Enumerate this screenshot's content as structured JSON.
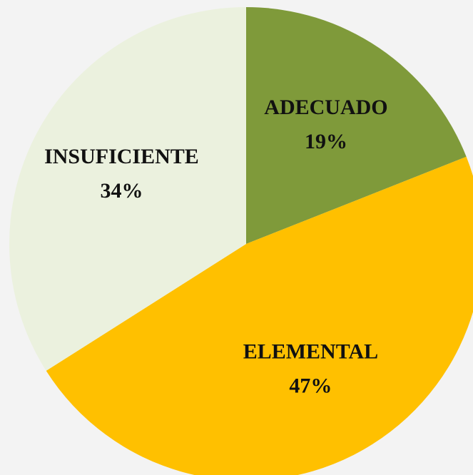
{
  "chart_data": {
    "type": "pie",
    "categories": [
      "ADECUADO",
      "ELEMENTAL",
      "INSUFICIENTE"
    ],
    "values": [
      19,
      47,
      34
    ],
    "value_labels": [
      "19%",
      "47%",
      "34%"
    ],
    "colors": [
      "#7f9a3a",
      "#ffc000",
      "#ebf1de"
    ]
  }
}
